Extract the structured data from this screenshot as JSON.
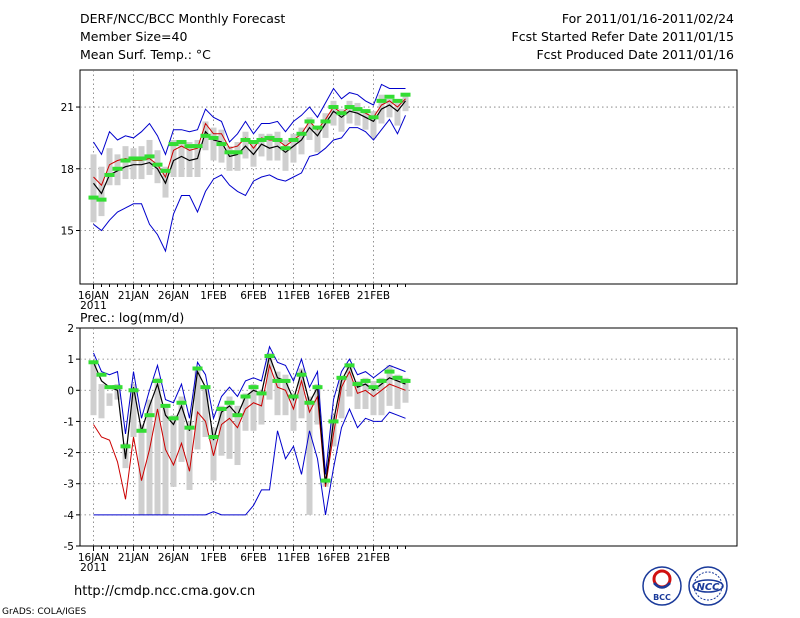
{
  "header": {
    "title": "DERF/NCC/BCC Monthly Forecast",
    "member_size": "Member Size=40",
    "variable": "Mean Surf. Temp.: °C",
    "period": "For 2011/01/16-2011/02/24",
    "start_date": "Fcst Started Refer Date 2011/01/15",
    "produced_date": "Fcst Produced Date 2011/01/16"
  },
  "footer": {
    "url": "http://cmdp.ncc.cma.gov.cn",
    "credit": "GrADS: COLA/IGES",
    "logo_bcc": "BCC",
    "logo_ncc": "NCC"
  },
  "colors": {
    "mean": "#000000",
    "median": "#cc0000",
    "extremes": "#0000cc",
    "box": "#cfcfcf",
    "marker": "#33dd33"
  },
  "chart_data": [
    {
      "type": "line",
      "title": "Mean Surf. Temp.: °C",
      "x_ticks": [
        "16JAN",
        "21JAN",
        "26JAN",
        "1FEB",
        "6FEB",
        "11FEB",
        "16FEB",
        "21FEB"
      ],
      "x_year_label": "2011",
      "y_ticks": [
        "15",
        "18",
        "21"
      ],
      "ylim": [
        12.4,
        22.8
      ],
      "days": 40,
      "series": [
        {
          "name": "mean",
          "values": [
            17.3,
            16.8,
            17.7,
            17.9,
            18.1,
            18.2,
            18.2,
            18.3,
            18.0,
            17.3,
            18.4,
            18.6,
            18.4,
            18.5,
            19.8,
            19.4,
            19.3,
            18.6,
            18.7,
            19.1,
            18.7,
            19.2,
            19.0,
            19.1,
            18.8,
            19.1,
            19.4,
            20.0,
            19.6,
            20.2,
            20.8,
            20.5,
            20.8,
            20.7,
            20.5,
            20.3,
            20.9,
            21.1,
            20.8,
            21.3
          ]
        },
        {
          "name": "median",
          "values": [
            17.6,
            17.2,
            18.2,
            18.4,
            18.5,
            18.4,
            18.4,
            18.5,
            18.2,
            17.6,
            18.9,
            19.1,
            18.9,
            19.0,
            20.2,
            19.7,
            19.7,
            19.0,
            19.1,
            19.5,
            19.0,
            19.5,
            19.4,
            19.4,
            19.1,
            19.4,
            19.7,
            20.3,
            19.9,
            20.4,
            21.0,
            20.7,
            21.0,
            20.9,
            20.7,
            20.5,
            21.1,
            21.3,
            21.0,
            21.4
          ]
        },
        {
          "name": "max",
          "values": [
            19.3,
            18.7,
            19.8,
            19.4,
            19.6,
            19.5,
            19.8,
            20.2,
            19.6,
            18.7,
            19.9,
            19.9,
            19.8,
            19.9,
            20.9,
            20.5,
            20.3,
            19.3,
            19.7,
            20.3,
            19.7,
            20.2,
            20.2,
            20.3,
            19.8,
            20.3,
            20.6,
            21.0,
            20.5,
            21.2,
            21.9,
            21.4,
            21.7,
            21.6,
            21.3,
            21.1,
            22.1,
            21.9,
            21.9,
            21.9
          ]
        },
        {
          "name": "min",
          "values": [
            15.3,
            15.0,
            15.5,
            15.9,
            16.1,
            16.3,
            16.3,
            15.3,
            14.8,
            14.0,
            15.8,
            16.7,
            16.7,
            15.9,
            16.9,
            17.5,
            17.7,
            17.2,
            16.9,
            16.7,
            17.4,
            17.6,
            17.7,
            17.5,
            17.4,
            17.6,
            17.8,
            18.6,
            18.7,
            19.0,
            19.4,
            19.5,
            20.0,
            20.0,
            19.8,
            19.4,
            19.9,
            20.4,
            19.7,
            20.6
          ]
        },
        {
          "name": "box_high",
          "values": [
            18.7,
            18.1,
            19.0,
            18.7,
            19.1,
            19.0,
            19.1,
            19.4,
            18.9,
            18.1,
            19.4,
            19.4,
            19.3,
            19.4,
            20.3,
            20.0,
            19.9,
            19.1,
            19.3,
            19.8,
            19.3,
            19.7,
            19.7,
            19.8,
            19.4,
            19.7,
            20.0,
            20.5,
            20.1,
            20.7,
            21.3,
            20.9,
            21.3,
            21.2,
            20.9,
            20.8,
            21.6,
            21.4,
            21.3,
            21.6
          ]
        },
        {
          "name": "box_low",
          "values": [
            15.4,
            15.7,
            17.2,
            17.2,
            17.5,
            17.5,
            17.5,
            17.7,
            17.3,
            16.6,
            17.6,
            17.6,
            17.6,
            17.6,
            18.9,
            18.4,
            18.3,
            17.9,
            17.9,
            18.5,
            18.1,
            18.6,
            18.4,
            18.4,
            17.9,
            18.3,
            18.7,
            19.4,
            18.8,
            19.5,
            20.1,
            19.8,
            20.2,
            20.1,
            19.9,
            19.5,
            20.2,
            20.5,
            20.1,
            20.8
          ]
        },
        {
          "name": "marker",
          "values": [
            16.6,
            16.5,
            17.7,
            18.0,
            18.4,
            18.5,
            18.5,
            18.6,
            18.2,
            17.9,
            19.2,
            19.3,
            19.1,
            19.1,
            19.6,
            19.5,
            19.2,
            18.8,
            18.8,
            19.4,
            19.3,
            19.4,
            19.5,
            19.4,
            19.0,
            19.4,
            19.7,
            20.3,
            20.0,
            20.3,
            21.0,
            20.7,
            21.0,
            20.9,
            20.8,
            20.5,
            21.3,
            21.5,
            21.3,
            21.6
          ]
        }
      ]
    },
    {
      "type": "line",
      "title": "Prec.: log(mm/d)",
      "x_ticks": [
        "16JAN",
        "21JAN",
        "26JAN",
        "1FEB",
        "6FEB",
        "11FEB",
        "16FEB",
        "21FEB"
      ],
      "x_year_label": "2011",
      "y_ticks": [
        "-5",
        "-4",
        "-3",
        "-2",
        "-1",
        "0",
        "1",
        "2"
      ],
      "ylim": [
        -5,
        2
      ],
      "days": 40,
      "series": [
        {
          "name": "mean",
          "values": [
            0.9,
            0.3,
            0.1,
            0.0,
            -2.2,
            0.1,
            -1.3,
            -0.5,
            0.2,
            -0.8,
            -1.1,
            -0.5,
            -1.3,
            0.6,
            0.1,
            -1.6,
            -0.7,
            -0.5,
            -0.8,
            -0.2,
            0.0,
            -0.1,
            1.1,
            0.4,
            0.3,
            -0.3,
            0.6,
            -0.4,
            0.1,
            -3.0,
            -1.0,
            0.3,
            0.8,
            0.1,
            0.2,
            0.0,
            0.2,
            0.4,
            0.3,
            0.2
          ]
        },
        {
          "name": "median",
          "values": [
            -1.1,
            -1.5,
            -1.6,
            -2.3,
            -3.5,
            -1.5,
            -2.9,
            -1.9,
            -0.6,
            -1.9,
            -2.4,
            -1.7,
            -2.6,
            -0.7,
            -1.0,
            -2.1,
            -1.1,
            -0.9,
            -1.2,
            -0.6,
            -0.4,
            -0.5,
            0.8,
            0.1,
            0.0,
            -0.6,
            0.3,
            -0.7,
            -0.2,
            -3.1,
            -1.4,
            0.1,
            0.6,
            -0.1,
            0.0,
            -0.2,
            0.0,
            0.2,
            0.1,
            0.0
          ]
        },
        {
          "name": "max",
          "values": [
            1.2,
            0.6,
            0.5,
            0.6,
            -1.4,
            0.6,
            -0.9,
            0.0,
            0.8,
            -0.3,
            -0.4,
            0.2,
            -0.9,
            0.9,
            0.5,
            -0.9,
            -0.2,
            0.1,
            -0.2,
            0.3,
            0.4,
            0.3,
            1.4,
            0.9,
            0.8,
            0.3,
            1.0,
            0.1,
            0.6,
            -2.7,
            -0.3,
            0.6,
            1.0,
            0.5,
            0.6,
            0.4,
            0.6,
            0.8,
            0.7,
            0.6
          ]
        },
        {
          "name": "min",
          "values": [
            -4.0,
            -4.0,
            -4.0,
            -4.0,
            -4.0,
            -4.0,
            -4.0,
            -4.0,
            -4.0,
            -4.0,
            -4.0,
            -4.0,
            -4.0,
            -4.0,
            -4.0,
            -3.9,
            -4.0,
            -4.0,
            -4.0,
            -4.0,
            -3.7,
            -3.2,
            -3.2,
            -1.3,
            -2.2,
            -1.8,
            -2.7,
            -1.3,
            -2.2,
            -4.0,
            -2.5,
            -1.2,
            -0.6,
            -1.2,
            -0.9,
            -1.0,
            -1.0,
            -0.7,
            -0.8,
            -0.9
          ]
        },
        {
          "name": "box_high",
          "values": [
            0.9,
            0.2,
            -0.1,
            0.2,
            -1.7,
            0.2,
            -1.1,
            -0.3,
            0.4,
            -0.5,
            -0.8,
            -0.2,
            -1.0,
            0.7,
            0.1,
            -1.2,
            -0.5,
            -0.2,
            -0.5,
            -0.1,
            0.2,
            0.0,
            1.2,
            0.6,
            0.5,
            -0.1,
            0.7,
            -0.2,
            0.2,
            -2.9,
            -0.8,
            0.4,
            0.8,
            0.3,
            0.4,
            0.3,
            0.4,
            0.8,
            0.5,
            0.4
          ]
        },
        {
          "name": "box_low",
          "values": [
            -0.8,
            -0.9,
            -0.5,
            -0.3,
            -2.5,
            -1.5,
            -4.0,
            -4.0,
            -4.0,
            -4.0,
            -3.1,
            -2.3,
            -3.2,
            -1.9,
            -1.5,
            -2.9,
            -2.1,
            -2.2,
            -2.4,
            -1.3,
            -1.3,
            -1.1,
            -0.3,
            -0.8,
            -0.8,
            -1.3,
            -0.9,
            -4.0,
            -1.1,
            -3.1,
            -1.8,
            -0.9,
            -0.2,
            -0.6,
            -0.6,
            -0.8,
            -0.8,
            -0.5,
            -0.6,
            -0.4
          ]
        },
        {
          "name": "marker",
          "values": [
            0.9,
            0.5,
            0.1,
            0.1,
            -1.8,
            0.0,
            -1.3,
            -0.8,
            0.3,
            -0.5,
            -0.9,
            -0.4,
            -1.2,
            0.7,
            0.1,
            -1.5,
            -0.6,
            -0.4,
            -0.8,
            -0.2,
            0.1,
            -0.1,
            1.1,
            0.3,
            0.3,
            -0.2,
            0.5,
            -0.4,
            0.1,
            -2.9,
            -1.0,
            0.4,
            0.8,
            0.2,
            0.3,
            0.1,
            0.3,
            0.6,
            0.4,
            0.3
          ]
        }
      ]
    }
  ]
}
